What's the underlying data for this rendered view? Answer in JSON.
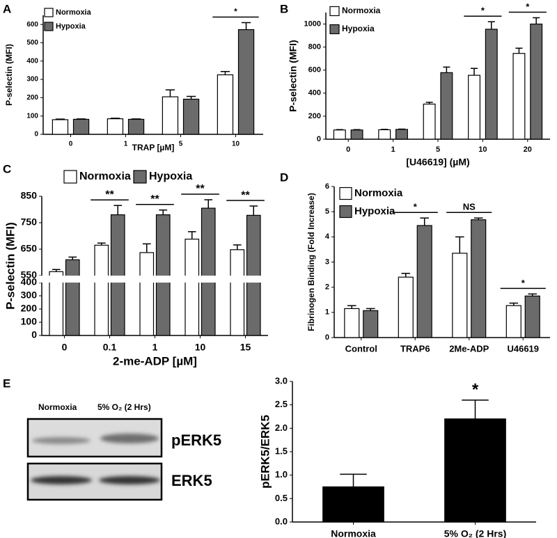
{
  "chart_data": [
    {
      "panel": "A",
      "type": "bar",
      "y_label": "P-selectin (MFI)",
      "x_label": "TRAP [µM]",
      "categories": [
        "0",
        "1",
        "5",
        "10"
      ],
      "series": [
        {
          "name": "Normoxia",
          "color": "#ffffff",
          "values": [
            80,
            85,
            205,
            325
          ],
          "errors": [
            3,
            3,
            38,
            18
          ]
        },
        {
          "name": "Hypoxia",
          "color": "#6b6b6b",
          "values": [
            82,
            82,
            192,
            572
          ],
          "errors": [
            2,
            2,
            15,
            38
          ]
        }
      ],
      "ylim": [
        0,
        650
      ],
      "yticks": [
        0,
        100,
        200,
        300,
        400,
        500,
        600
      ],
      "annotations": [
        {
          "text": "*",
          "category": "10"
        }
      ],
      "legend": "upper left"
    },
    {
      "panel": "B",
      "type": "bar",
      "y_label": "P-selectin (MFI)",
      "x_label": "[U46619]  (µM)",
      "categories": [
        "0",
        "1",
        "5",
        "10",
        "20"
      ],
      "series": [
        {
          "name": "Normoxia",
          "color": "#ffffff",
          "values": [
            80,
            82,
            305,
            555,
            745
          ],
          "errors": [
            3,
            3,
            15,
            60,
            45
          ]
        },
        {
          "name": "Hypoxia",
          "color": "#6b6b6b",
          "values": [
            80,
            85,
            578,
            955,
            1000
          ],
          "errors": [
            3,
            3,
            48,
            65,
            55
          ]
        }
      ],
      "ylim": [
        0,
        1100
      ],
      "yticks": [
        0,
        200,
        400,
        600,
        800,
        1000
      ],
      "annotations": [
        {
          "text": "*",
          "category": "10"
        },
        {
          "text": "*",
          "category": "20"
        }
      ],
      "legend": "upper left"
    },
    {
      "panel": "C",
      "type": "bar",
      "y_label": "P-selectin (MFI)",
      "x_label": "2-me-ADP [µM]",
      "categories": [
        "0",
        "0.1",
        "1",
        "10",
        "15"
      ],
      "series": [
        {
          "name": "Normoxia",
          "color": "#ffffff",
          "values": [
            565,
            665,
            637,
            688,
            648
          ],
          "errors": [
            8,
            8,
            33,
            28,
            18
          ]
        },
        {
          "name": "Hypoxia",
          "color": "#6b6b6b",
          "values": [
            610,
            780,
            780,
            805,
            778
          ],
          "errors": [
            10,
            35,
            18,
            32,
            35
          ]
        }
      ],
      "ylim": [
        0,
        850
      ],
      "yticks": [
        0,
        100,
        200,
        300,
        400,
        550,
        650,
        750,
        850
      ],
      "broken_axis": true,
      "annotations": [
        {
          "text": "**",
          "category": "0.1"
        },
        {
          "text": "**",
          "category": "1"
        },
        {
          "text": "**",
          "category": "10"
        },
        {
          "text": "**",
          "category": "15"
        }
      ],
      "legend": "top"
    },
    {
      "panel": "D",
      "type": "bar",
      "y_label": "Fibrinogen Binding (Fold Increase)",
      "categories": [
        "Control",
        "TRAP6",
        "2Me-ADP",
        "U46619"
      ],
      "series": [
        {
          "name": "Normoxia",
          "color": "#ffffff",
          "values": [
            1.15,
            2.4,
            3.35,
            1.27
          ],
          "errors": [
            0.12,
            0.15,
            0.65,
            0.1
          ]
        },
        {
          "name": "Hypoxia",
          "color": "#6b6b6b",
          "values": [
            1.07,
            4.45,
            4.68,
            1.65
          ],
          "errors": [
            0.08,
            0.3,
            0.07,
            0.08
          ]
        }
      ],
      "ylim": [
        0,
        6
      ],
      "yticks": [
        0,
        1,
        2,
        3,
        4,
        5,
        6
      ],
      "annotations": [
        {
          "text": "*",
          "category": "TRAP6"
        },
        {
          "text": "NS",
          "category": "2Me-ADP"
        },
        {
          "text": "*",
          "category": "U46619"
        }
      ],
      "legend": "upper left"
    },
    {
      "panel": "E",
      "type": "bar",
      "y_label": "pERK5/ERK5",
      "blot": {
        "lanes": [
          "Normoxia",
          "5% O₂ (2 Hrs)"
        ],
        "bands": [
          "pERK5",
          "ERK5"
        ]
      },
      "categories": [
        "Normoxia",
        "5% O₂ (2 Hrs)"
      ],
      "values": [
        0.75,
        2.2
      ],
      "errors": [
        0.27,
        0.4
      ],
      "color": "#000000",
      "ylim": [
        0,
        3
      ],
      "yticks": [
        {
          "value": 0,
          "label": "0.0"
        },
        0.5,
        {
          "value": 1,
          "label": "1.0"
        },
        1.5,
        {
          "value": 2,
          "label": "2.0"
        },
        2.5,
        {
          "value": 3,
          "label": "3.0"
        }
      ],
      "annotations": [
        {
          "text": "*",
          "category": "5% O₂ (2 Hrs)"
        }
      ]
    }
  ]
}
